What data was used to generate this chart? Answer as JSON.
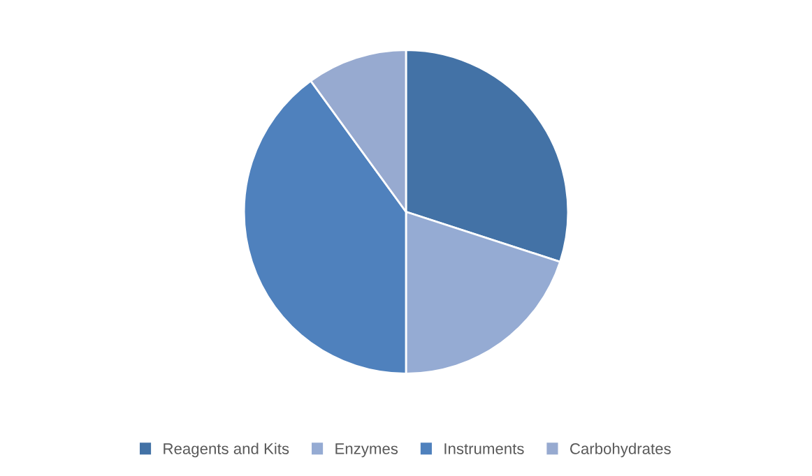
{
  "chart_data": {
    "type": "pie",
    "categories": [
      "Reagents and Kits",
      "Enzymes",
      "Instruments",
      "Carbohydrates"
    ],
    "values": [
      30,
      20,
      40,
      10
    ],
    "colors": [
      "#4372a6",
      "#95abd3",
      "#4f81bd",
      "#97aad0"
    ],
    "legend": "bottom"
  }
}
